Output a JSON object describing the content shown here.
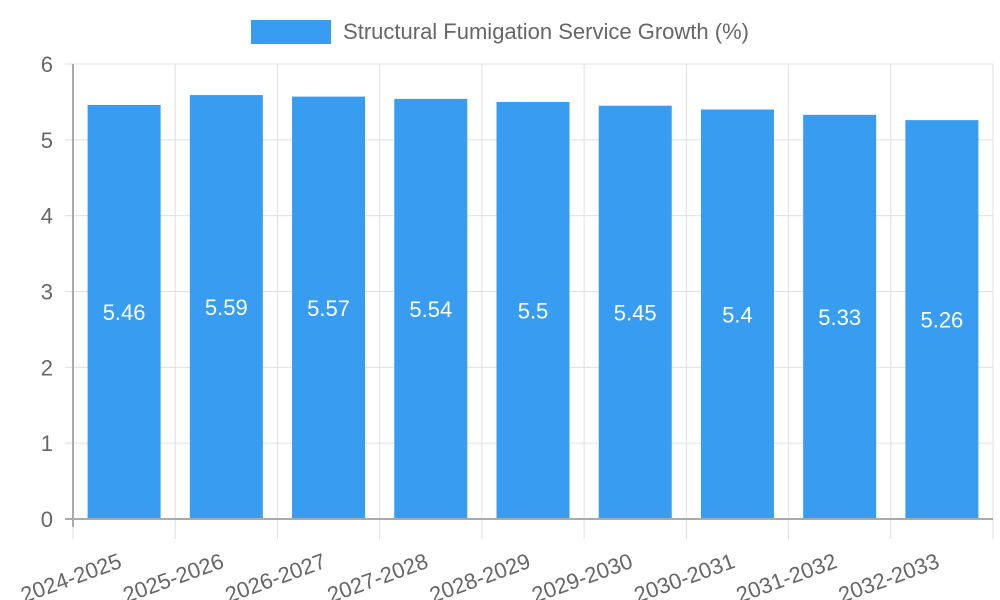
{
  "chart_data": {
    "type": "bar",
    "title": "",
    "legend": [
      {
        "label": "Structural Fumigation Service Growth (%)",
        "color": "#389cf0"
      }
    ],
    "legend_position": "top",
    "categories": [
      "2024-2025",
      "2025-2026",
      "2026-2027",
      "2027-2028",
      "2028-2029",
      "2029-2030",
      "2030-2031",
      "2031-2032",
      "2032-2033"
    ],
    "series": [
      {
        "name": "Structural Fumigation Service Growth (%)",
        "values": [
          5.46,
          5.59,
          5.57,
          5.54,
          5.5,
          5.45,
          5.4,
          5.33,
          5.26
        ],
        "color": "#389cf0"
      }
    ],
    "data_labels": [
      "5.46",
      "5.59",
      "5.57",
      "5.54",
      "5.5",
      "5.45",
      "5.4",
      "5.33",
      "5.26"
    ],
    "xlabel": "",
    "ylabel": "",
    "ylim": [
      0,
      6
    ],
    "yticks": [
      "0",
      "1",
      "2",
      "3",
      "4",
      "5",
      "6"
    ],
    "grid": true,
    "xtick_rotation": -20
  },
  "legend": {
    "label": "Structural Fumigation Service Growth (%)",
    "color": "#389cf0"
  }
}
